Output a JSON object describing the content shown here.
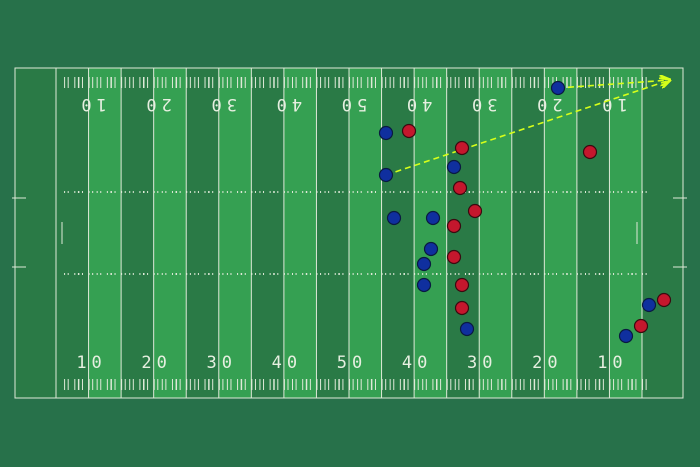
{
  "field": {
    "yard_numbers_top": [
      "10",
      "20",
      "30",
      "40",
      "50",
      "40",
      "30",
      "20",
      "10"
    ],
    "yard_numbers_bottom": [
      "10",
      "20",
      "30",
      "40",
      "50",
      "40",
      "30",
      "20",
      "10"
    ]
  }
}
